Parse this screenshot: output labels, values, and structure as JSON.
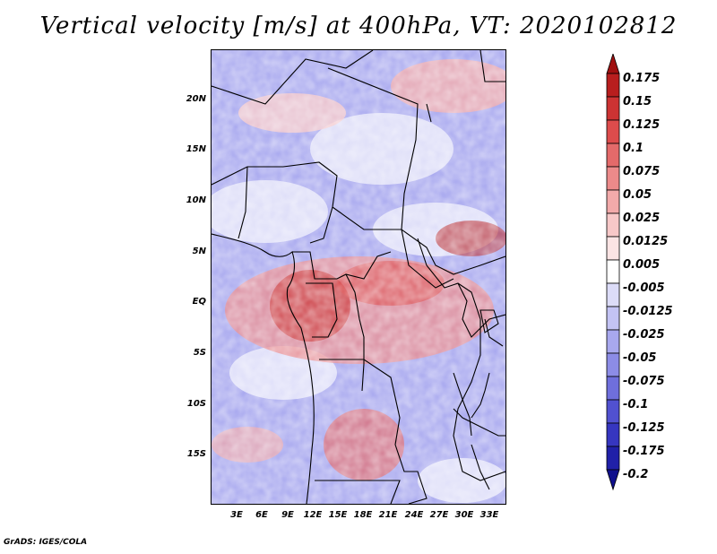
{
  "title": "Vertical velocity [m/s] at 400hPa, VT: 2020102812",
  "credit": "GrADS: IGES/COLA",
  "lat_labels": [
    "20N",
    "15N",
    "10N",
    "5N",
    "EQ",
    "5S",
    "10S",
    "15S"
  ],
  "lon_labels": [
    "3E",
    "6E",
    "9E",
    "12E",
    "15E",
    "18E",
    "21E",
    "24E",
    "27E",
    "30E",
    "33E"
  ],
  "colorbar": {
    "labels": [
      "0.175",
      "0.15",
      "0.125",
      "0.1",
      "0.075",
      "0.05",
      "0.025",
      "0.0125",
      "0.005",
      "-0.005",
      "-0.0125",
      "-0.025",
      "-0.05",
      "-0.075",
      "-0.1",
      "-0.125",
      "-0.175",
      "-0.2"
    ],
    "colors": [
      "#a01010",
      "#b81e1e",
      "#cc3333",
      "#dd4c4c",
      "#e46a6a",
      "#ec8a8a",
      "#f2aaaa",
      "#f7c8c8",
      "#fbe4e4",
      "#ffffff",
      "#dcdcf8",
      "#c3c3f4",
      "#a8a8ee",
      "#8c8ce6",
      "#6f6fdc",
      "#5151d0",
      "#3636c0",
      "#2020a8",
      "#10108c"
    ]
  }
}
